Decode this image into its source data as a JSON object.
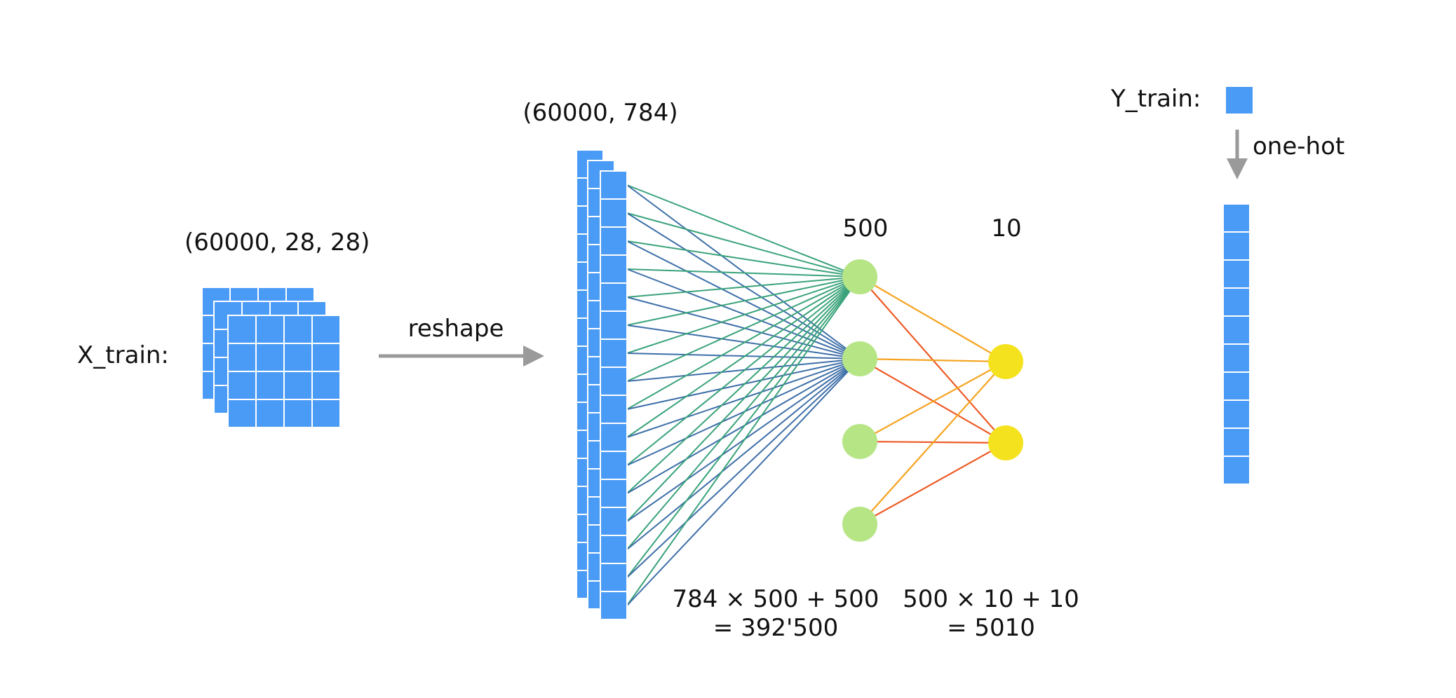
{
  "labels": {
    "x_train": "X_train:",
    "x_shape": "(60000, 28, 28)",
    "reshape": "reshape",
    "flat_shape": "(60000, 784)",
    "hidden_size": "500",
    "output_size": "10",
    "y_train": "Y_train:",
    "one_hot": "one-hot",
    "params_hidden_line1": "784 × 500 + 500",
    "params_hidden_line2": "= 392'500",
    "params_output_line1": "500 × 10 + 10",
    "params_output_line2": "= 5010"
  },
  "network": {
    "input_cells_shown": 16,
    "hidden_nodes_shown": 4,
    "output_nodes_shown": 2,
    "onehot_cells_shown": 10,
    "image_grid": "4x4"
  },
  "colors": {
    "cell_blue": "#4a9bf5",
    "hidden_node": "#b6e586",
    "output_node": "#f5e21e",
    "edge_green": "#3aa37a",
    "edge_blue": "#3d6fa8",
    "edge_orange": "#f5a31f",
    "edge_red": "#ee5a24",
    "arrow_gray": "#9a9a9a"
  }
}
